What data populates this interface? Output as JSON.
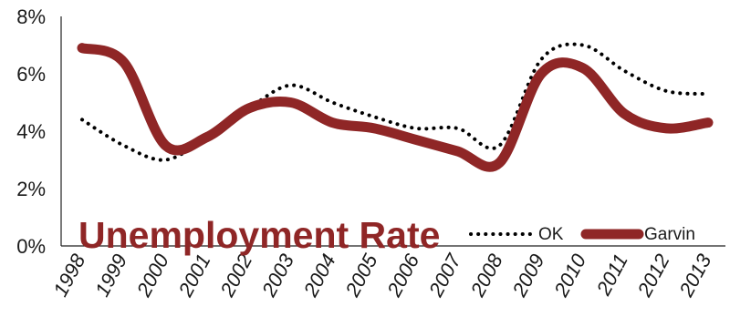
{
  "chart_data": {
    "type": "line",
    "title": "Unemployment Rate",
    "categories": [
      "1998",
      "1999",
      "2000",
      "2001",
      "2002",
      "2003",
      "2004",
      "2005",
      "2006",
      "2007",
      "2008",
      "2009",
      "2010",
      "2011",
      "2012",
      "2013"
    ],
    "series": [
      {
        "name": "OK",
        "style": "dotted",
        "color": "#000000",
        "values": [
          4.4,
          3.5,
          3.0,
          3.8,
          4.8,
          5.6,
          5.0,
          4.5,
          4.1,
          4.1,
          3.5,
          6.5,
          7.0,
          6.1,
          5.4,
          5.3
        ]
      },
      {
        "name": "Garvin",
        "style": "solid",
        "color": "#8f2626",
        "values": [
          6.9,
          6.4,
          3.5,
          3.8,
          4.8,
          5.0,
          4.3,
          4.1,
          3.7,
          3.3,
          2.9,
          6.0,
          6.2,
          4.6,
          4.1,
          4.3
        ]
      }
    ],
    "y_ticks": [
      "0%",
      "2%",
      "4%",
      "6%",
      "8%"
    ],
    "ylim": [
      0,
      8
    ],
    "xlabel": "",
    "ylabel": "",
    "grid": false,
    "legend_position": "bottom-right"
  }
}
